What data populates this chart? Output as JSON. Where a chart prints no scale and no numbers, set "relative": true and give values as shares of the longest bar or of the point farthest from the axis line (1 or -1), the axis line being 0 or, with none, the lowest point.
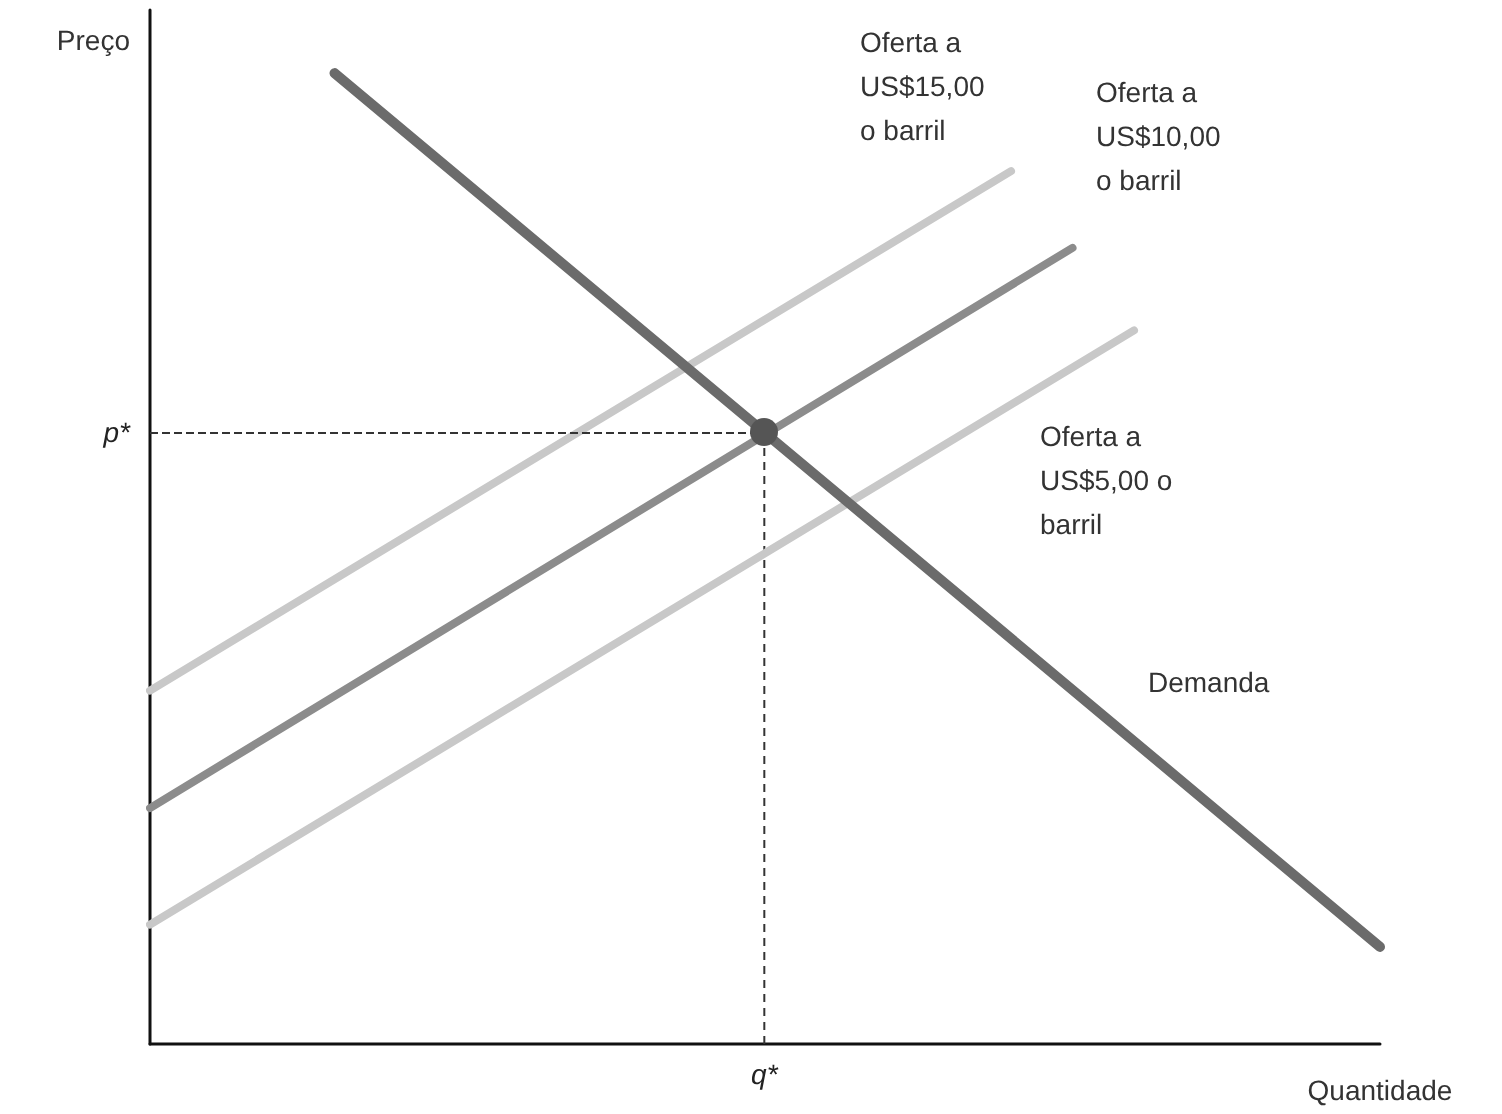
{
  "chart_data": {
    "type": "line",
    "relative": true,
    "xlabel": "Quantidade",
    "ylabel": "Preço",
    "categories": [
      null,
      null,
      null,
      null,
      null,
      null,
      null,
      null,
      null,
      null,
      null,
      null,
      null,
      null,
      null,
      null,
      null,
      null,
      null,
      null,
      null
    ],
    "series": [
      {
        "name": "Oferta a US$15,00 o barril",
        "color": "#c8c8c8",
        "values": [
          0.364,
          null,
          null,
          null,
          null,
          null,
          null,
          null,
          null,
          null,
          null,
          null,
          null,
          null,
          0.899,
          null,
          null,
          null,
          null,
          null,
          null
        ]
      },
      {
        "name": "Oferta a US$10,00 o barril",
        "color": "#8c8c8c",
        "values": [
          0.243,
          null,
          null,
          null,
          null,
          null,
          null,
          null,
          null,
          null,
          null,
          null,
          null,
          null,
          null,
          0.82,
          null,
          null,
          null,
          null,
          null
        ]
      },
      {
        "name": "Oferta a US$5,00 o barril",
        "color": "#c8c8c8",
        "values": [
          0.123,
          null,
          null,
          null,
          null,
          null,
          null,
          null,
          null,
          null,
          null,
          null,
          null,
          null,
          null,
          null,
          0.735,
          null,
          null,
          null,
          null
        ]
      },
      {
        "name": "Demanda",
        "color": "#6b6b6b",
        "values": [
          null,
          null,
          null,
          1.0,
          null,
          null,
          null,
          null,
          null,
          null,
          null,
          null,
          null,
          null,
          null,
          null,
          null,
          null,
          null,
          null,
          0.1
        ]
      }
    ],
    "ref_lines": [
      {
        "axis": "y",
        "value": 0.63,
        "label": "p*",
        "line_style": "dashed",
        "color": "#333333"
      }
    ],
    "annotations": [
      "q*"
    ],
    "marker": "none",
    "grid": false,
    "legend": false
  }
}
